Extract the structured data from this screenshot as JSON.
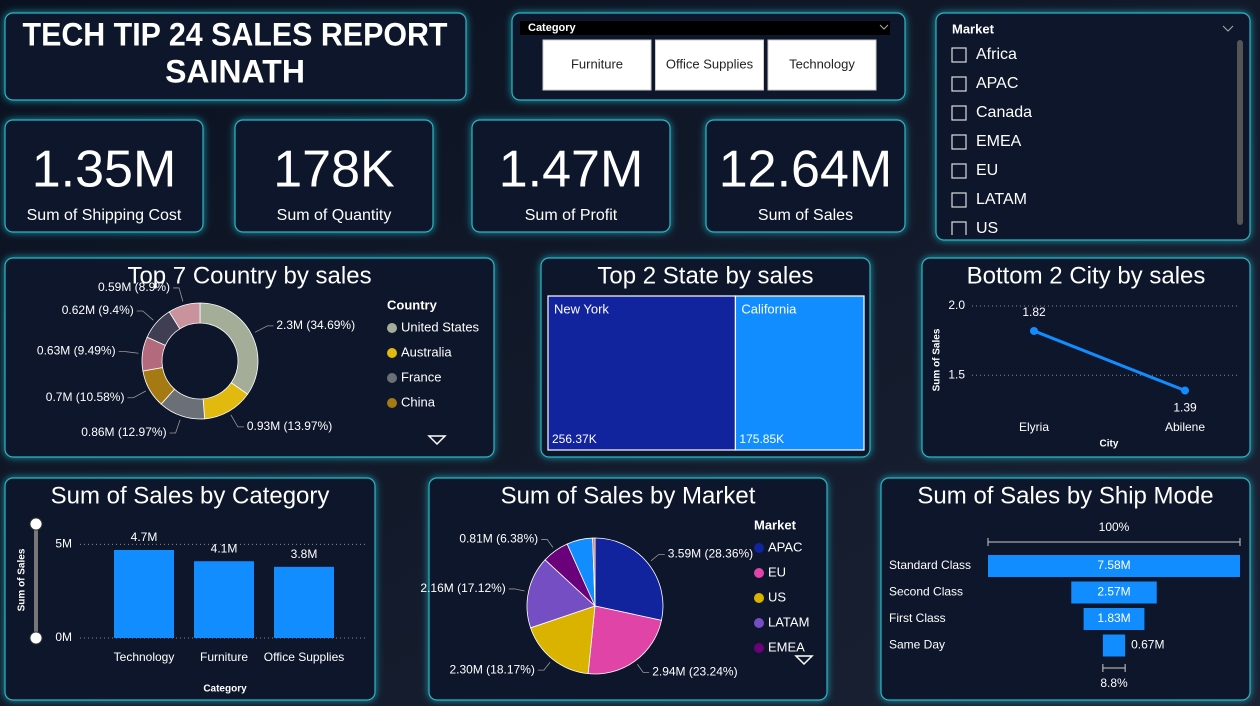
{
  "header": {
    "title_lines": [
      "TECH TIP 24 SALES REPORT",
      "SAINATH"
    ]
  },
  "category_slicer": {
    "label": "Category",
    "options": [
      "Furniture",
      "Office Supplies",
      "Technology"
    ]
  },
  "market_slicer": {
    "label": "Market",
    "options": [
      "Africa",
      "APAC",
      "Canada",
      "EMEA",
      "EU",
      "LATAM",
      "US"
    ]
  },
  "cards": [
    {
      "value": "1.35M",
      "label": "Sum of Shipping Cost"
    },
    {
      "value": "178K",
      "label": "Sum of Quantity"
    },
    {
      "value": "1.47M",
      "label": "Sum of Profit"
    },
    {
      "value": "12.64M",
      "label": "Sum of Sales"
    }
  ],
  "chart_data": [
    {
      "type": "donut",
      "title": "Top 7 Country by sales",
      "legend_title": "Country",
      "categories": [
        "United States",
        "Australia",
        "France",
        "China",
        null,
        null,
        null
      ],
      "values": [
        2.3,
        0.93,
        0.86,
        0.7,
        0.63,
        0.62,
        0.59
      ],
      "value_labels": [
        "2.3M (34.69%)",
        "0.93M (13.97%)",
        "0.86M (12.97%)",
        "0.7M (10.58%)",
        "0.63M (9.49%)",
        "0.62M (9.4%)",
        "0.59M (8.9%)"
      ],
      "colors": [
        "#a3ad98",
        "#e2b90e",
        "#6b6f76",
        "#a57a12",
        "#b26a7c",
        "#3f3e52",
        "#c9939e"
      ]
    },
    {
      "type": "treemap",
      "title": "Top 2 State by sales",
      "categories": [
        "New York",
        "California"
      ],
      "values": [
        256.37,
        175.85
      ],
      "value_labels": [
        "256.37K",
        "175.85K"
      ],
      "colors": [
        "#12239e",
        "#118dff"
      ]
    },
    {
      "type": "line",
      "title": "Bottom 2 City by sales",
      "x_label": "City",
      "y_label": "Sum of Sales",
      "categories": [
        "Elyria",
        "Abilene"
      ],
      "values": [
        1.82,
        1.39
      ],
      "ylim": [
        1.3,
        2.0
      ],
      "yticks": [
        {
          "value": 2,
          "label": "2.0"
        },
        1.5
      ],
      "color": "#118dff",
      "grid": true
    },
    {
      "type": "bar",
      "title": "Sum of Sales by Category",
      "x_label": "Category",
      "y_label": "Sum of Sales",
      "categories": [
        "Technology",
        "Furniture",
        "Office Supplies"
      ],
      "values": [
        4.7,
        4.1,
        3.8
      ],
      "value_labels": [
        "4.7M",
        "4.1M",
        "3.8M"
      ],
      "ylim": [
        0,
        5.5
      ],
      "yticks": [
        {
          "value": 0,
          "label": "0M"
        },
        {
          "value": 5,
          "label": "5M"
        }
      ],
      "color": "#118dff",
      "grid": true
    },
    {
      "type": "pie",
      "title": "Sum of Sales by Market",
      "legend_title": "Market",
      "categories": [
        "APAC",
        "EU",
        "US",
        "LATAM",
        "EMEA",
        null,
        null
      ],
      "values": [
        3.59,
        2.94,
        2.3,
        2.16,
        0.81,
        0.78,
        0.07
      ],
      "value_labels": [
        "3.59M (28.36%)",
        "2.94M (23.24%)",
        "2.30M (18.17%)",
        "2.16M (17.12%)",
        "0.81M (6.38%)",
        null,
        null
      ],
      "colors": [
        "#12239e",
        "#e044a7",
        "#d9b300",
        "#744ec2",
        "#6b007b",
        "#118dff",
        "#e66c37"
      ]
    },
    {
      "type": "funnel",
      "title": "Sum of Sales by Ship Mode",
      "categories": [
        "Standard Class",
        "Second Class",
        "First Class",
        "Same Day"
      ],
      "values": [
        7.58,
        2.57,
        1.83,
        0.67
      ],
      "value_labels": [
        "7.58M",
        "2.57M",
        "1.83M",
        "0.67M"
      ],
      "top_label": "100%",
      "bottom_label": "8.8%",
      "color": "#118dff"
    }
  ]
}
